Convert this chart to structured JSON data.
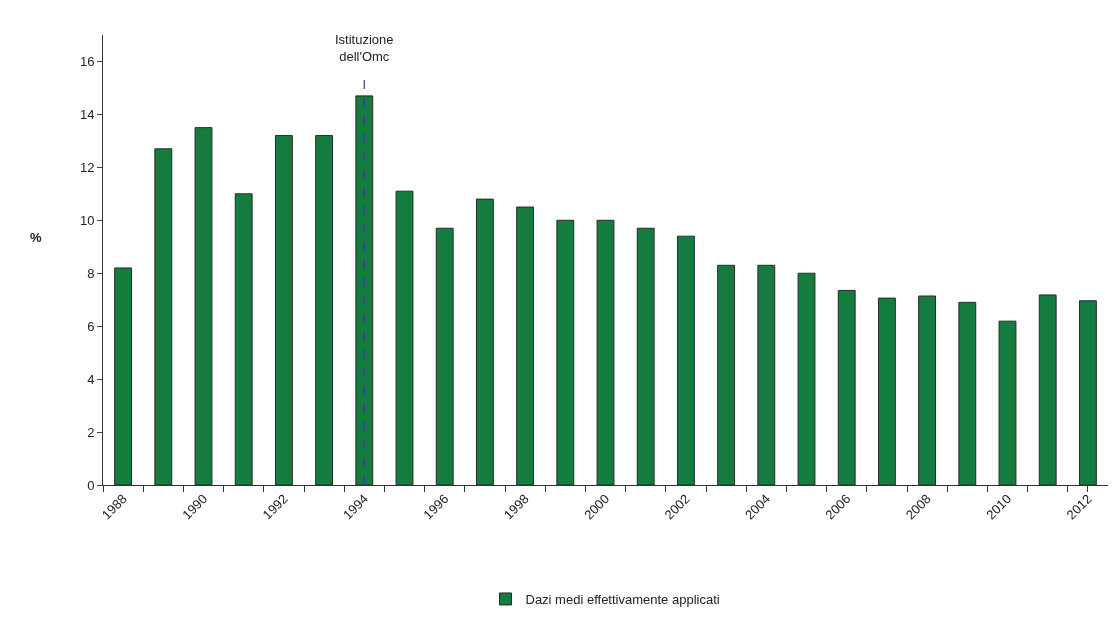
{
  "chart_data": {
    "type": "bar",
    "ylabel": "%",
    "categories": [
      "1988",
      null,
      "1990",
      null,
      "1992",
      null,
      "1994",
      null,
      "1996",
      null,
      "1998",
      null,
      "2000",
      null,
      "2002",
      null,
      "2004",
      null,
      "2006",
      null,
      "2008",
      null,
      "2010",
      null,
      "2012"
    ],
    "series": [
      {
        "name": "Dazi medi effettivamente applicati",
        "color": "#147c3e",
        "values": [
          8.2,
          12.7,
          13.5,
          11.0,
          13.2,
          13.2,
          14.7,
          11.1,
          9.7,
          10.8,
          10.5,
          10.0,
          10.0,
          9.7,
          9.4,
          8.3,
          8.3,
          8.0,
          7.35,
          7.06,
          7.14,
          6.9,
          6.19,
          7.18,
          6.96
        ]
      }
    ],
    "ylim": [
      0,
      17
    ],
    "yticks": [
      0,
      2,
      4,
      6,
      8,
      10,
      12,
      14,
      16
    ],
    "grid": false,
    "legend": "bottom",
    "ref_lines": [
      {
        "axis": "x",
        "value": "1994",
        "label": "Istituzione\ndell'Omc",
        "color": "#3a3aa0",
        "line_style": "dashed"
      }
    ]
  }
}
